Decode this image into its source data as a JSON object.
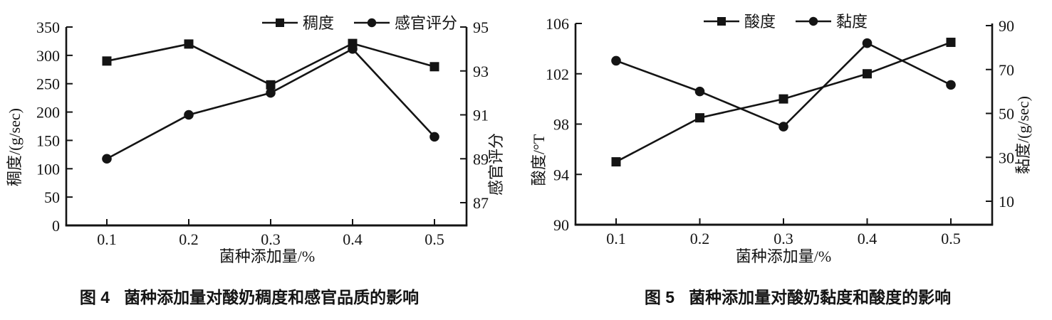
{
  "chart_data": [
    {
      "type": "line",
      "caption_num": "图 4",
      "caption_text": "菌种添加量对酸奶稠度和感官品质的影响",
      "x": [
        0.1,
        0.2,
        0.3,
        0.4,
        0.5
      ],
      "xlabel": "菌种添加量/%",
      "ylabel_left": "稠度/(g/sec)",
      "ylabel_right": "感官评分",
      "ylim_left": [
        0,
        350
      ],
      "ylim_right": [
        86,
        95
      ],
      "yticks_left": [
        0,
        50,
        100,
        150,
        200,
        250,
        300,
        350
      ],
      "yticks_right": [
        87,
        89,
        91,
        93,
        95
      ],
      "grid": false,
      "legend_position": "top-center",
      "series": [
        {
          "name": "稠度",
          "axis": "left",
          "marker": "square",
          "color": "#000000",
          "values": [
            290,
            320,
            248,
            321,
            280
          ]
        },
        {
          "name": "感官评分",
          "axis": "right",
          "marker": "circle",
          "color": "#000000",
          "values": [
            89,
            91,
            92,
            94,
            90
          ]
        }
      ]
    },
    {
      "type": "line",
      "caption_num": "图 5",
      "caption_text": "菌种添加量对酸奶黏度和酸度的影响",
      "x": [
        0.1,
        0.2,
        0.3,
        0.4,
        0.5
      ],
      "xlabel": "菌种添加量/%",
      "ylabel_left": "酸度/°T",
      "ylabel_right": "黏度/(g/sec)",
      "ylim_left": [
        90,
        106
      ],
      "ylim_right": [
        0,
        90
      ],
      "yticks_left": [
        90,
        94,
        98,
        102,
        106
      ],
      "yticks_right": [
        10,
        30,
        50,
        70,
        90
      ],
      "grid": false,
      "legend_position": "top-center",
      "series": [
        {
          "name": "酸度",
          "axis": "left",
          "marker": "square",
          "color": "#000000",
          "values": [
            95,
            98.5,
            100,
            102,
            104.5
          ]
        },
        {
          "name": "黏度",
          "axis": "right",
          "marker": "circle",
          "color": "#000000",
          "values": [
            74,
            60,
            44,
            82,
            63
          ]
        }
      ]
    }
  ]
}
